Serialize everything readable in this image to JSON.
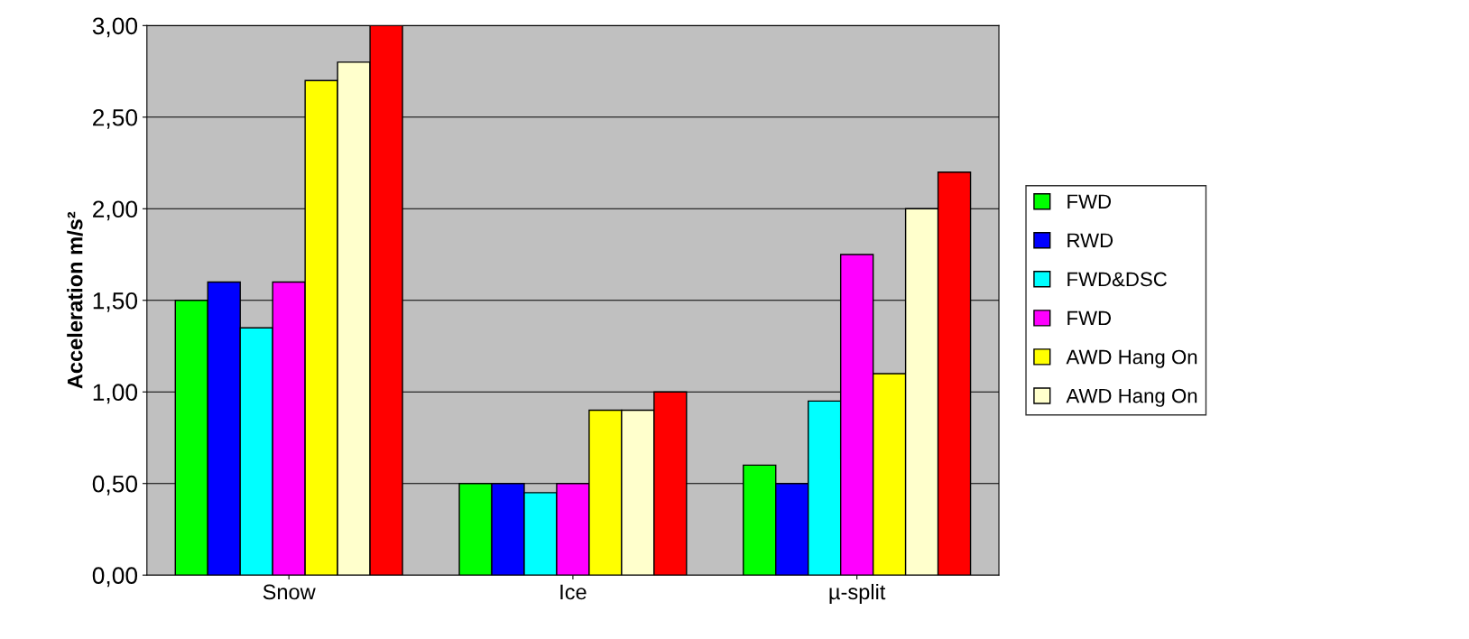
{
  "chart_data": {
    "type": "bar",
    "ylabel": "Acceleration m/s²",
    "categories": [
      "Snow",
      "Ice",
      "µ-split"
    ],
    "series": [
      {
        "name": "FWD",
        "color": "#00ff00",
        "values": [
          1.5,
          0.5,
          0.6
        ]
      },
      {
        "name": "RWD",
        "color": "#0000ff",
        "values": [
          1.6,
          0.5,
          0.5
        ]
      },
      {
        "name": "FWD&DSC",
        "color": "#00ffff",
        "values": [
          1.35,
          0.45,
          0.95
        ]
      },
      {
        "name": "FWD",
        "color": "#ff00ff",
        "values": [
          1.6,
          0.5,
          1.75
        ]
      },
      {
        "name": "AWD Hang On",
        "color": "#ffff00",
        "values": [
          2.7,
          0.9,
          1.1
        ]
      },
      {
        "name": "AWD Hang On",
        "color": "#ffffcc",
        "values": [
          2.8,
          0.9,
          2.0
        ]
      },
      {
        "color": "#ff0000",
        "values": [
          3.0,
          1.0,
          2.2
        ]
      }
    ],
    "ylim": [
      0,
      3
    ],
    "yticks": [
      {
        "value": 0,
        "label": "0,00"
      },
      {
        "value": 0.5,
        "label": "0,50"
      },
      {
        "value": 1,
        "label": "1,00"
      },
      {
        "value": 1.5,
        "label": "1,50"
      },
      {
        "value": 2,
        "label": "2,00"
      },
      {
        "value": 2.5,
        "label": "2,50"
      },
      {
        "value": 3,
        "label": "3,00"
      }
    ],
    "grid": "y",
    "legend": "right"
  }
}
